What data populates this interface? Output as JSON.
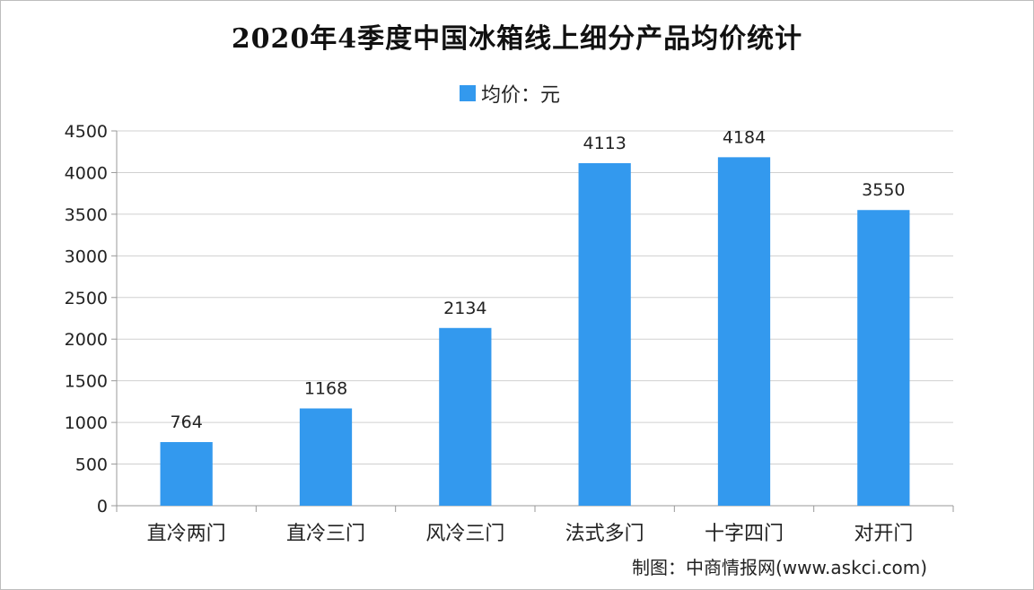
{
  "chart_data": {
    "type": "bar",
    "title": "2020年4季度中国冰箱线上细分产品均价统计",
    "categories": [
      "直冷两门",
      "直冷三门",
      "风冷三门",
      "法式多门",
      "十字四门",
      "对开门"
    ],
    "series": [
      {
        "name": "均价：元",
        "values": [
          764,
          1168,
          2134,
          4113,
          4184,
          3550
        ],
        "color": "#3399ee"
      }
    ],
    "y_ticks": [
      "0",
      "500",
      "1000",
      "1500",
      "2000",
      "2500",
      "3000",
      "3500",
      "4000",
      "4500"
    ],
    "ylim": [
      0,
      4500
    ],
    "xlabel": "",
    "ylabel": "",
    "grid": true,
    "legend_position": "top-center",
    "source": "制图：中商情报网(www.askci.com)"
  }
}
